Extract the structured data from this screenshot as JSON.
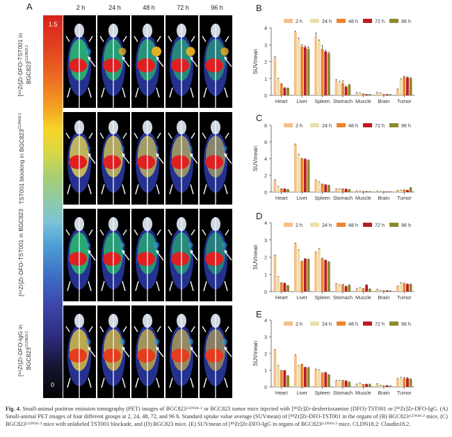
{
  "figure": {
    "panel_a_letter": "A",
    "timepoints": [
      "2 h",
      "24 h",
      "48 h",
      "72 h",
      "96 h"
    ],
    "colorbar": {
      "max_label": "1.5",
      "min_label": "0"
    },
    "rows": [
      {
        "label_main": "[⁸⁹Zr]Zr-DFO-TST001 in",
        "label_line2": "BGC823",
        "label_sup": "CLDN18.2"
      },
      {
        "label_main": "TST001 blocking in BGC823",
        "label_line2": "",
        "label_sup": "CLDN18.2"
      },
      {
        "label_main": "[⁸⁹Zr]Zr-DFO-TST001 in BGC823",
        "label_line2": "",
        "label_sup": ""
      },
      {
        "label_main": "[⁸⁹Zr]Zr-DFO-IgG in",
        "label_line2": "BGC823",
        "label_sup": "CLDN18.2"
      }
    ],
    "caption": {
      "fig_label": "Fig. 4.",
      "text": "Small-animal positron emission tomography (PET) images of BGC823ᶜᴸᴰᴺ¹⁸·² or BGC823 tumor mice injected with [⁸⁹Zr]Zr-desferrioxamine (DFO)-TST001 or [⁸⁹Zr]Zr-DFO-IgG. (A) Small-animal PET images of four different groups at 2, 24, 48, 72, and 96 h. Standard uptake value average (SUVmean) of [⁸⁹Zr]Zr-DFO-TST001 in the organs of (B) BGC823ᶜᴸᴰᴺ¹⁸·² mice, (C) BGC823ᶜᴸᴰᴺ¹⁸·² mice with unlabeled TST001 blockade, and (D) BGC823 mice. (E) SUVmean of [⁸⁹Zr]Zr-DFO-IgG in organs of BGC823ᶜᴸᴰᴺ¹⁸·² mice. CLDN18.2: Claudin18.2."
    }
  },
  "colors": {
    "series": [
      "#f5c088",
      "#e9dfae",
      "#ec842e",
      "#b81d22",
      "#8e8a2c"
    ],
    "axis": "#555555",
    "text": "#222222"
  },
  "chart_data": [
    {
      "panel": "B",
      "type": "bar",
      "title": "",
      "xlabel": "",
      "ylabel": "SUVmean",
      "ylim": [
        0,
        4
      ],
      "yticks": [
        0,
        1,
        2,
        3,
        4
      ],
      "grid": false,
      "legend": "top",
      "categories": [
        "Heart",
        "Liver",
        "Spleen",
        "Stomach",
        "Muscle",
        "Brain",
        "Tumor"
      ],
      "series": [
        {
          "name": "2 h",
          "values": [
            2.2,
            3.75,
            3.5,
            0.85,
            0.15,
            0.15,
            0.35
          ],
          "errors": [
            0.1,
            0.05,
            0.2,
            0.08,
            0.02,
            0.03,
            0.03
          ]
        },
        {
          "name": "24 h",
          "values": [
            0.95,
            3.3,
            3.2,
            0.8,
            0.12,
            0.12,
            0.95
          ],
          "errors": [
            0.05,
            0.1,
            0.08,
            0.04,
            0.02,
            0.02,
            0.03
          ]
        },
        {
          "name": "48 h",
          "values": [
            0.68,
            2.9,
            2.75,
            0.72,
            0.08,
            0.05,
            1.1
          ],
          "errors": [
            0.02,
            0.1,
            0.2,
            0.15,
            0.02,
            0.01,
            0.03
          ]
        },
        {
          "name": "72 h",
          "values": [
            0.44,
            2.85,
            2.6,
            0.5,
            0.05,
            0.05,
            1.05
          ],
          "errors": [
            0.02,
            0.08,
            0.08,
            0.05,
            0.01,
            0.01,
            0.05
          ]
        },
        {
          "name": "96 h",
          "values": [
            0.42,
            2.75,
            2.48,
            0.62,
            0.05,
            0.04,
            1.02
          ],
          "errors": [
            0.02,
            0.12,
            0.08,
            0.03,
            0.01,
            0.01,
            0.03
          ]
        }
      ]
    },
    {
      "panel": "C",
      "type": "bar",
      "title": "",
      "xlabel": "",
      "ylabel": "SUVmean",
      "ylim": [
        0,
        8
      ],
      "yticks": [
        0,
        2,
        4,
        6,
        8
      ],
      "grid": false,
      "legend": "top",
      "categories": [
        "Heart",
        "Liver",
        "Spleen",
        "Stomach",
        "Muscle",
        "Brain",
        "Tumor"
      ],
      "series": [
        {
          "name": "2 h",
          "values": [
            1.45,
            5.7,
            1.4,
            0.38,
            0.12,
            0.1,
            0.18
          ],
          "errors": [
            0.04,
            0.05,
            0.05,
            0.02,
            0.02,
            0.02,
            0.02
          ]
        },
        {
          "name": "24 h",
          "values": [
            0.65,
            4.5,
            1.2,
            0.38,
            0.1,
            0.08,
            0.22
          ],
          "errors": [
            0.03,
            0.05,
            0.04,
            0.02,
            0.02,
            0.01,
            0.02
          ]
        },
        {
          "name": "48 h",
          "values": [
            0.4,
            4.0,
            0.95,
            0.38,
            0.06,
            0.04,
            0.25
          ],
          "errors": [
            0.02,
            0.05,
            0.03,
            0.02,
            0.01,
            0.01,
            0.02
          ]
        },
        {
          "name": "72 h",
          "values": [
            0.38,
            3.95,
            0.88,
            0.36,
            0.05,
            0.03,
            0.22
          ],
          "errors": [
            0.02,
            0.05,
            0.03,
            0.02,
            0.01,
            0.01,
            0.02
          ]
        },
        {
          "name": "96 h",
          "values": [
            0.3,
            3.8,
            0.8,
            0.28,
            0.04,
            0.03,
            0.5
          ],
          "errors": [
            0.02,
            0.05,
            0.03,
            0.02,
            0.01,
            0.01,
            0.05
          ]
        }
      ]
    },
    {
      "panel": "D",
      "type": "bar",
      "title": "",
      "xlabel": "",
      "ylabel": "SUVmean",
      "ylim": [
        0,
        4
      ],
      "yticks": [
        0,
        1,
        2,
        3,
        4
      ],
      "grid": false,
      "legend": "top",
      "categories": [
        "Heart",
        "Liver",
        "Spleen",
        "Stomach",
        "Muscle",
        "Brain",
        "Tumor"
      ],
      "series": [
        {
          "name": "2 h",
          "values": [
            2.1,
            2.78,
            2.28,
            0.45,
            0.15,
            0.12,
            0.3
          ],
          "errors": [
            0.02,
            0.03,
            0.02,
            0.02,
            0.02,
            0.02,
            0.02
          ]
        },
        {
          "name": "24 h",
          "values": [
            0.85,
            2.4,
            2.47,
            0.38,
            0.2,
            0.05,
            0.5
          ],
          "errors": [
            0.02,
            0.03,
            0.02,
            0.02,
            0.02,
            0.01,
            0.02
          ]
        },
        {
          "name": "48 h",
          "values": [
            0.5,
            1.75,
            1.92,
            0.4,
            0.16,
            0.04,
            0.47
          ],
          "errors": [
            0.02,
            0.02,
            0.02,
            0.02,
            0.02,
            0.01,
            0.02
          ]
        },
        {
          "name": "72 h",
          "values": [
            0.48,
            1.9,
            1.82,
            0.3,
            0.38,
            0.05,
            0.43
          ],
          "errors": [
            0.02,
            0.02,
            0.02,
            0.02,
            0.02,
            0.01,
            0.02
          ]
        },
        {
          "name": "96 h",
          "values": [
            0.34,
            1.87,
            1.72,
            0.37,
            0.15,
            0.04,
            0.42
          ],
          "errors": [
            0.02,
            0.02,
            0.02,
            0.02,
            0.01,
            0.01,
            0.02
          ]
        }
      ]
    },
    {
      "panel": "E",
      "type": "bar",
      "title": "",
      "xlabel": "",
      "ylabel": "SUVmean",
      "ylim": [
        0,
        4
      ],
      "yticks": [
        0,
        1,
        2,
        3,
        4
      ],
      "grid": false,
      "legend": "top",
      "categories": [
        "Heart",
        "Liver",
        "Spleen",
        "Stomach",
        "Muscle",
        "Brain",
        "Tumor"
      ],
      "series": [
        {
          "name": "2 h",
          "values": [
            2.22,
            1.9,
            1.05,
            0.37,
            0.15,
            0.18,
            0.48
          ],
          "errors": [
            0.02,
            0.03,
            0.02,
            0.02,
            0.02,
            0.02,
            0.03
          ]
        },
        {
          "name": "24 h",
          "values": [
            1.27,
            1.27,
            1.0,
            0.37,
            0.22,
            0.1,
            0.52
          ],
          "errors": [
            0.02,
            0.02,
            0.02,
            0.02,
            0.02,
            0.01,
            0.06
          ]
        },
        {
          "name": "48 h",
          "values": [
            0.98,
            1.35,
            0.83,
            0.38,
            0.15,
            0.05,
            0.52
          ],
          "errors": [
            0.02,
            0.02,
            0.02,
            0.02,
            0.01,
            0.01,
            0.03
          ]
        },
        {
          "name": "72 h",
          "values": [
            0.98,
            1.17,
            0.86,
            0.36,
            0.16,
            0.08,
            0.52
          ],
          "errors": [
            0.02,
            0.02,
            0.02,
            0.02,
            0.01,
            0.01,
            0.04
          ]
        },
        {
          "name": "96 h",
          "values": [
            0.66,
            1.15,
            0.72,
            0.28,
            0.16,
            0.05,
            0.46
          ],
          "errors": [
            0.02,
            0.02,
            0.02,
            0.02,
            0.01,
            0.01,
            0.02
          ]
        }
      ]
    }
  ]
}
